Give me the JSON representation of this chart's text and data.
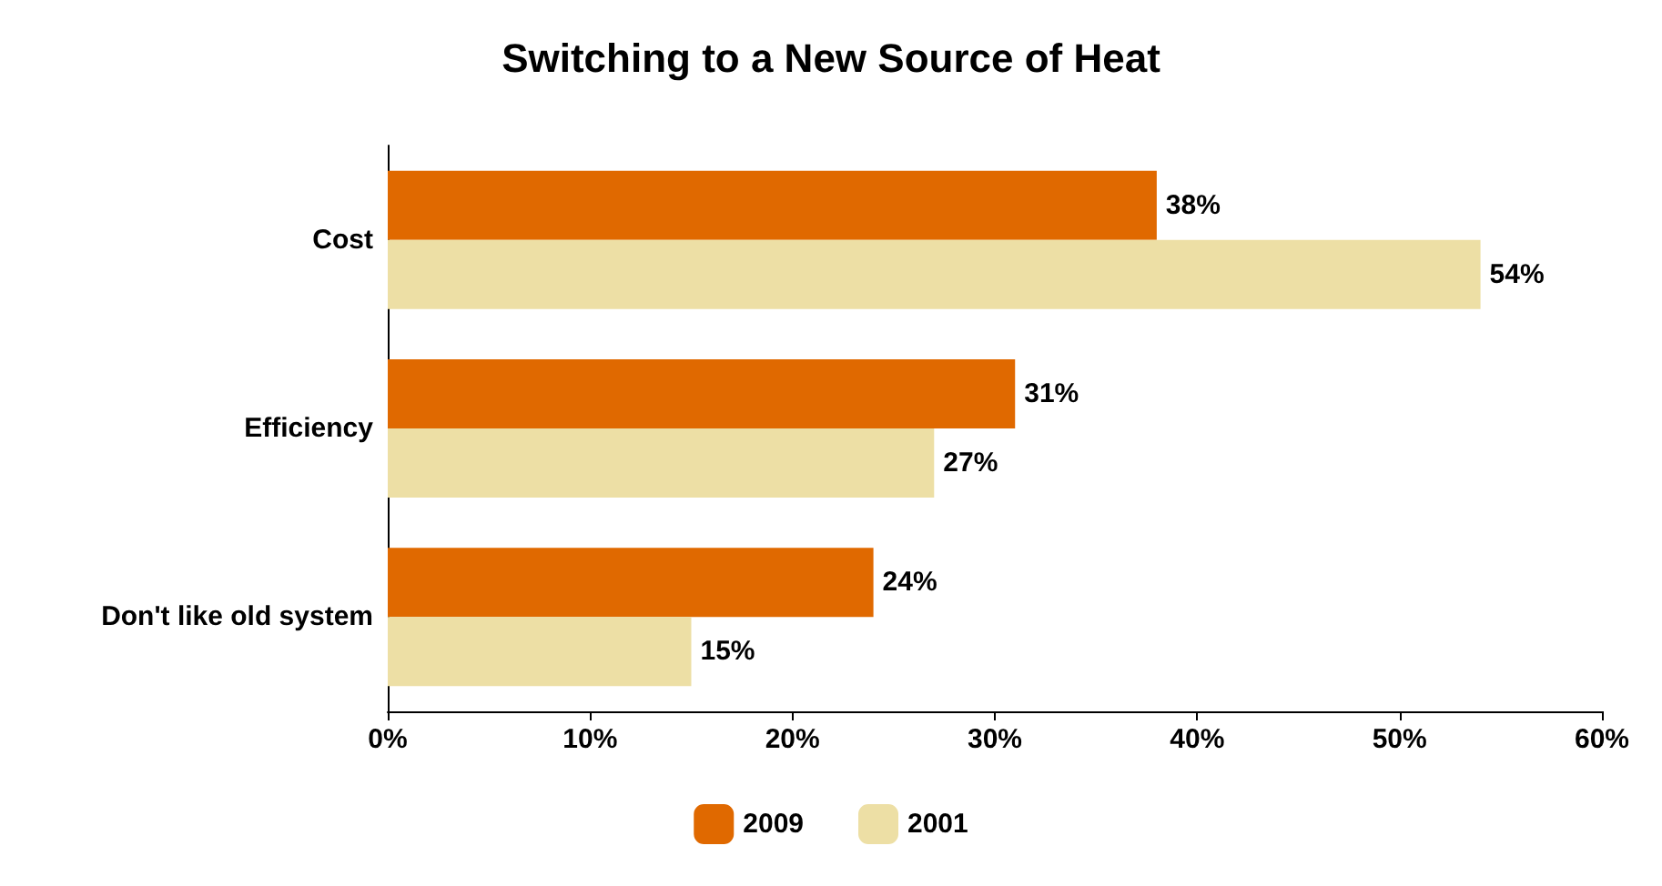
{
  "chart_data": {
    "type": "bar",
    "orientation": "horizontal",
    "title": "Switching to a New Source of Heat",
    "categories": [
      "Cost",
      "Efficiency",
      "Don't like old system"
    ],
    "series": [
      {
        "name": "2009",
        "color": "#e06900",
        "values": [
          38,
          31,
          24
        ],
        "value_labels": [
          "38%",
          "31%",
          "24%"
        ]
      },
      {
        "name": "2001",
        "color": "#eddfa5",
        "values": [
          54,
          27,
          15
        ],
        "value_labels": [
          "54%",
          "27%",
          "15%"
        ]
      }
    ],
    "xlim": [
      0,
      60
    ],
    "xticks": [
      {
        "value": 0,
        "label": "0%"
      },
      {
        "value": 10,
        "label": "10%"
      },
      {
        "value": 20,
        "label": "20%"
      },
      {
        "value": 30,
        "label": "30%"
      },
      {
        "value": 40,
        "label": "40%"
      },
      {
        "value": 50,
        "label": "50%"
      },
      {
        "value": 60,
        "label": "60%"
      }
    ],
    "grid": false,
    "legend": "bottom"
  }
}
